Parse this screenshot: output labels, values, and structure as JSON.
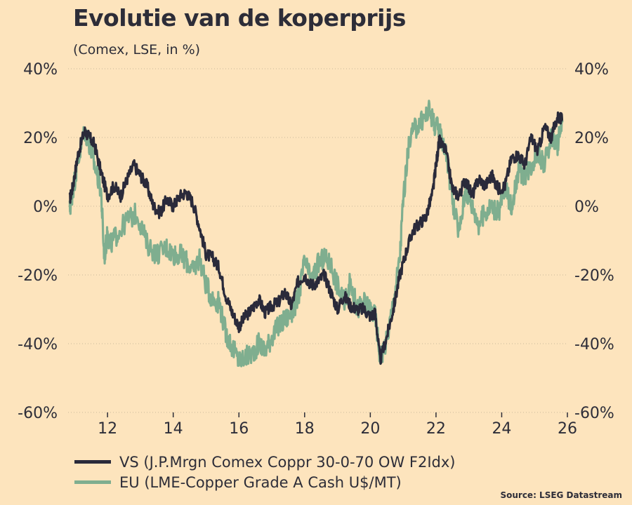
{
  "chart_data": {
    "type": "line",
    "title": "Evolutie van de koperprijs",
    "subtitle": "(Comex, LSE, in %)",
    "xlabel": "",
    "ylabel": "",
    "xlim": [
      10.8,
      26
    ],
    "ylim": [
      -60,
      40
    ],
    "x_ticks": [
      12,
      14,
      16,
      18,
      20,
      22,
      24,
      26
    ],
    "x_tick_labels": [
      "12",
      "14",
      "16",
      "18",
      "20",
      "22",
      "24",
      "26"
    ],
    "y_ticks": [
      40,
      20,
      0,
      -20,
      -40,
      -60
    ],
    "y_tick_labels": [
      "40%",
      "20%",
      "0%",
      "-20%",
      "-40%",
      "-60%"
    ],
    "grid": "horizontal-dotted",
    "legend_position": "bottom-left",
    "source": "Source: LSEG Datastream",
    "series": [
      {
        "name": "VS (J.P.Mrgn Comex Coppr 30-0-70 OW F2Idx)",
        "color": "#2a2a3a",
        "x": [
          10.85,
          10.95,
          11.1,
          11.3,
          11.45,
          11.6,
          11.8,
          12.0,
          12.2,
          12.4,
          12.6,
          12.8,
          13.0,
          13.2,
          13.4,
          13.6,
          13.8,
          14.0,
          14.2,
          14.4,
          14.6,
          14.8,
          15.0,
          15.2,
          15.4,
          15.6,
          15.8,
          16.0,
          16.2,
          16.4,
          16.6,
          16.8,
          17.0,
          17.2,
          17.4,
          17.6,
          17.8,
          18.0,
          18.2,
          18.4,
          18.6,
          18.8,
          19.0,
          19.2,
          19.4,
          19.6,
          19.8,
          20.0,
          20.15,
          20.3,
          20.5,
          20.7,
          20.9,
          21.1,
          21.3,
          21.5,
          21.7,
          21.9,
          22.0,
          22.1,
          22.3,
          22.5,
          22.7,
          22.9,
          23.1,
          23.3,
          23.5,
          23.7,
          23.9,
          24.1,
          24.3,
          24.5,
          24.7,
          24.9,
          25.1,
          25.3,
          25.5,
          25.7,
          25.85
        ],
        "values": [
          2,
          6,
          15,
          22,
          20,
          18,
          10,
          3,
          6,
          3,
          8,
          12,
          9,
          6,
          0,
          -2,
          2,
          0,
          3,
          4,
          1,
          -6,
          -14,
          -15,
          -18,
          -26,
          -31,
          -35,
          -32,
          -30,
          -27,
          -31,
          -29,
          -28,
          -25,
          -29,
          -22,
          -20,
          -23,
          -22,
          -20,
          -25,
          -30,
          -26,
          -29,
          -30,
          -30,
          -32,
          -31,
          -45,
          -38,
          -30,
          -20,
          -13,
          -7,
          -5,
          -3,
          4,
          12,
          19,
          16,
          5,
          3,
          8,
          3,
          8,
          6,
          9,
          5,
          6,
          14,
          15,
          12,
          20,
          16,
          23,
          20,
          26,
          25
        ]
      },
      {
        "name": "EU (LME-Copper Grade A Cash U$/MT)",
        "color": "#7fae8f",
        "x": [
          10.85,
          10.95,
          11.1,
          11.3,
          11.45,
          11.6,
          11.8,
          11.9,
          12.0,
          12.1,
          12.3,
          12.6,
          12.9,
          13.2,
          13.5,
          13.8,
          14.0,
          14.2,
          14.4,
          14.6,
          14.8,
          15.0,
          15.2,
          15.4,
          15.6,
          15.8,
          16.0,
          16.2,
          16.4,
          16.6,
          16.8,
          17.0,
          17.2,
          17.4,
          17.6,
          17.8,
          18.0,
          18.2,
          18.4,
          18.6,
          18.8,
          19.0,
          19.2,
          19.4,
          19.6,
          19.8,
          20.0,
          20.15,
          20.3,
          20.5,
          20.7,
          20.9,
          21.0,
          21.2,
          21.4,
          21.6,
          21.8,
          21.95,
          22.1,
          22.3,
          22.5,
          22.7,
          22.9,
          23.1,
          23.3,
          23.5,
          23.7,
          23.9,
          24.1,
          24.3,
          24.5,
          24.7,
          24.9,
          25.1,
          25.3,
          25.5,
          25.7,
          25.85
        ],
        "values": [
          -1,
          5,
          13,
          22,
          18,
          12,
          5,
          -15,
          -8,
          -11,
          -8,
          -4,
          -2,
          -11,
          -14,
          -12,
          -14,
          -14,
          -16,
          -19,
          -15,
          -23,
          -27,
          -28,
          -37,
          -41,
          -45,
          -44,
          -43,
          -40,
          -42,
          -38,
          -35,
          -33,
          -31,
          -27,
          -16,
          -22,
          -17,
          -15,
          -17,
          -23,
          -28,
          -22,
          -30,
          -28,
          -30,
          -32,
          -44,
          -39,
          -28,
          -15,
          2,
          20,
          23,
          25,
          28,
          24,
          22,
          16,
          2,
          -8,
          5,
          0,
          -5,
          -2,
          0,
          -2,
          5,
          0,
          10,
          9,
          12,
          16,
          12,
          20,
          18,
          25
        ]
      }
    ]
  }
}
